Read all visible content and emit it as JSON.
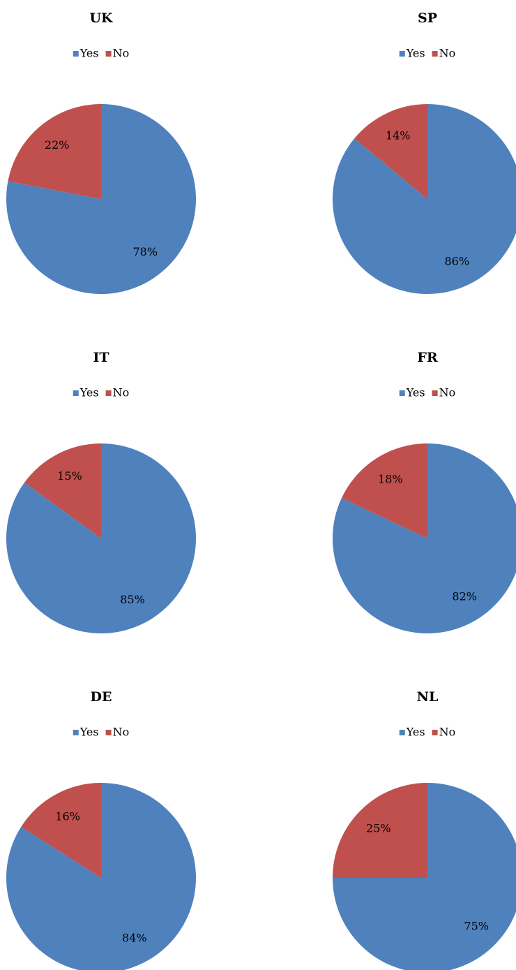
{
  "chart_data": [
    {
      "type": "pie",
      "title": "UK",
      "categories": [
        "Yes",
        "No"
      ],
      "values": [
        78,
        22
      ],
      "value_labels": [
        "78%",
        "22%"
      ],
      "colors": [
        "#4f81bd",
        "#c0504d"
      ]
    },
    {
      "type": "pie",
      "title": "SP",
      "categories": [
        "Yes",
        "No"
      ],
      "values": [
        86,
        14
      ],
      "value_labels": [
        "86%",
        "14%"
      ],
      "colors": [
        "#4f81bd",
        "#c0504d"
      ]
    },
    {
      "type": "pie",
      "title": "IT",
      "categories": [
        "Yes",
        "No"
      ],
      "values": [
        85,
        15
      ],
      "value_labels": [
        "85%",
        "15%"
      ],
      "colors": [
        "#4f81bd",
        "#c0504d"
      ]
    },
    {
      "type": "pie",
      "title": "FR",
      "categories": [
        "Yes",
        "No"
      ],
      "values": [
        82,
        18
      ],
      "value_labels": [
        "82%",
        "18%"
      ],
      "colors": [
        "#4f81bd",
        "#c0504d"
      ]
    },
    {
      "type": "pie",
      "title": "DE",
      "categories": [
        "Yes",
        "No"
      ],
      "values": [
        84,
        16
      ],
      "value_labels": [
        "84%",
        "16%"
      ],
      "colors": [
        "#4f81bd",
        "#c0504d"
      ]
    },
    {
      "type": "pie",
      "title": "NL",
      "categories": [
        "Yes",
        "No"
      ],
      "values": [
        75,
        25
      ],
      "value_labels": [
        "75%",
        "25%"
      ],
      "colors": [
        "#4f81bd",
        "#c0504d"
      ]
    }
  ]
}
